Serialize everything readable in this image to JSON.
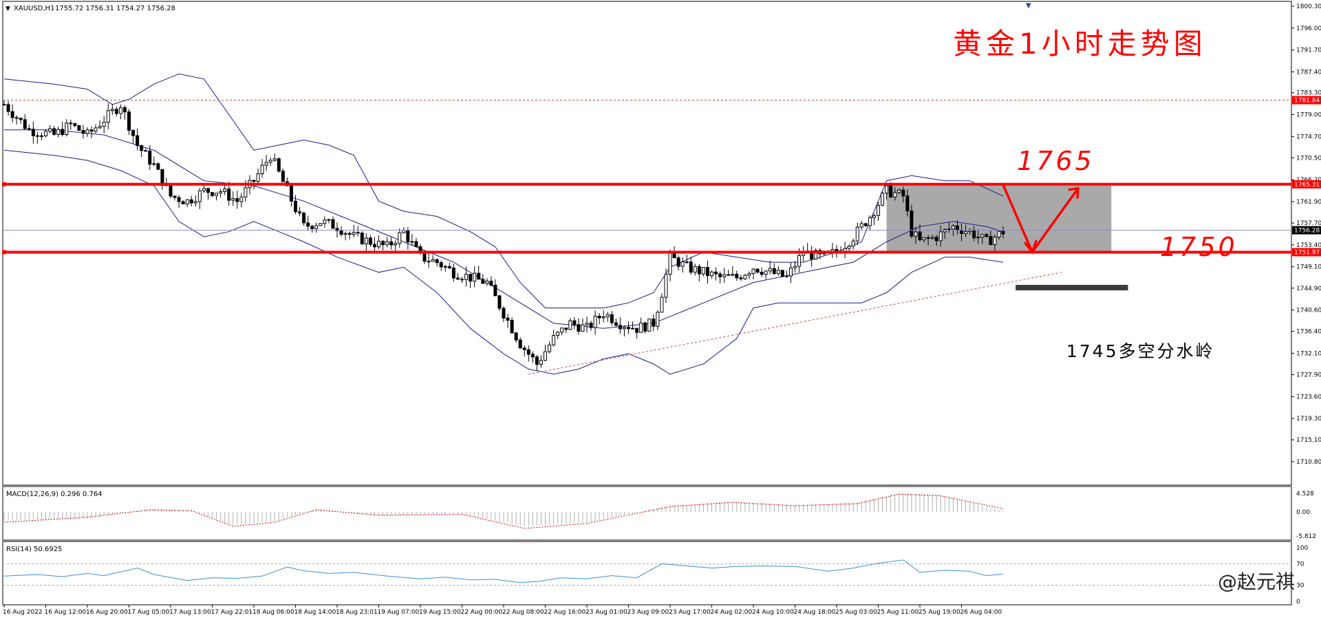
{
  "header": {
    "symbol": "XAUUSD,H1",
    "ohlc": "1755.72 1756.31 1754.27 1756.28"
  },
  "annotations": {
    "title": "黄金1小时走势图",
    "level_high": "1765",
    "level_low": "1750",
    "pivot_note": "1745多空分水岭",
    "watermark": "@赵元祺"
  },
  "colors": {
    "candle": "#000000",
    "bollinger": "#1a1a8c",
    "level_line": "#ff0000",
    "zone_fill": "#a9a9a9",
    "macd_signal": "#cc0000",
    "rsi": "#3b8ed6",
    "annotation": "#ff0000"
  },
  "chart_data": [
    {
      "type": "candlestick",
      "title": "XAUUSD,H1",
      "ylim": [
        1710.0,
        1800.5
      ],
      "y_ticks": [
        "1800.30",
        "1796.00",
        "1791.70",
        "1787.40",
        "1783.30",
        "1779.00",
        "1774.70",
        "1770.50",
        "1766.20",
        "1761.90",
        "1757.70",
        "1753.40",
        "1749.10",
        "1744.90",
        "1740.60",
        "1736.40",
        "1732.10",
        "1727.90",
        "1723.60",
        "1719.30",
        "1715.10",
        "1710.80"
      ],
      "x_ticks": [
        "16 Aug 2022",
        "16 Aug 12:00",
        "16 Aug 20:00",
        "17 Aug 05:00",
        "17 Aug 13:00",
        "17 Aug 22:01",
        "18 Aug 06:00",
        "18 Aug 14:00",
        "18 Aug 23:01",
        "19 Aug 07:00",
        "19 Aug 15:00",
        "22 Aug 00:00",
        "22 Aug 08:00",
        "22 Aug 16:00",
        "23 Aug 01:00",
        "23 Aug 09:00",
        "23 Aug 17:00",
        "24 Aug 02:00",
        "24 Aug 10:00",
        "24 Aug 18:00",
        "25 Aug 03:00",
        "25 Aug 11:00",
        "25 Aug 19:00",
        "26 Aug 04:00"
      ],
      "price_labels": {
        "high_line": "1781.84",
        "resistance": "1765.31",
        "current": "1756.28",
        "support": "1751.97"
      },
      "levels": {
        "high_line": 1781.84,
        "resistance": 1765.31,
        "current": 1756.28,
        "support": 1751.97,
        "pivot": 1745.0
      },
      "close_path": [
        [
          0,
          1781
        ],
        [
          6,
          1776
        ],
        [
          12,
          1775
        ],
        [
          16,
          1777
        ],
        [
          20,
          1775
        ],
        [
          24,
          1778
        ],
        [
          28,
          1781
        ],
        [
          32,
          1773
        ],
        [
          36,
          1769
        ],
        [
          40,
          1763
        ],
        [
          44,
          1762
        ],
        [
          48,
          1764
        ],
        [
          52,
          1764
        ],
        [
          56,
          1762
        ],
        [
          60,
          1766
        ],
        [
          64,
          1771
        ],
        [
          68,
          1764
        ],
        [
          72,
          1757
        ],
        [
          76,
          1758
        ],
        [
          80,
          1757
        ],
        [
          84,
          1755
        ],
        [
          88,
          1754
        ],
        [
          92,
          1753
        ],
        [
          96,
          1756
        ],
        [
          100,
          1751
        ],
        [
          104,
          1750
        ],
        [
          108,
          1748
        ],
        [
          112,
          1747
        ],
        [
          116,
          1746
        ],
        [
          120,
          1740
        ],
        [
          124,
          1734
        ],
        [
          128,
          1730
        ],
        [
          132,
          1735
        ],
        [
          136,
          1738
        ],
        [
          140,
          1737
        ],
        [
          144,
          1740
        ],
        [
          148,
          1738
        ],
        [
          152,
          1737
        ],
        [
          156,
          1738
        ],
        [
          158,
          1744
        ],
        [
          160,
          1751
        ],
        [
          164,
          1749
        ],
        [
          168,
          1748
        ],
        [
          172,
          1747
        ],
        [
          176,
          1747
        ],
        [
          180,
          1749
        ],
        [
          184,
          1748
        ],
        [
          188,
          1747
        ],
        [
          192,
          1752
        ],
        [
          196,
          1751
        ],
        [
          200,
          1752
        ],
        [
          204,
          1755
        ],
        [
          208,
          1759
        ],
        [
          212,
          1764
        ],
        [
          216,
          1763
        ],
        [
          218,
          1756
        ],
        [
          220,
          1754
        ],
        [
          224,
          1755
        ],
        [
          228,
          1757
        ],
        [
          232,
          1756
        ],
        [
          236,
          1754
        ],
        [
          240,
          1756
        ]
      ],
      "bollinger": {
        "upper": [
          [
            0,
            1786
          ],
          [
            12,
            1785
          ],
          [
            20,
            1784
          ],
          [
            26,
            1781
          ],
          [
            30,
            1782
          ],
          [
            36,
            1785
          ],
          [
            42,
            1787
          ],
          [
            48,
            1786
          ],
          [
            54,
            1779
          ],
          [
            60,
            1772
          ],
          [
            66,
            1773
          ],
          [
            72,
            1774
          ],
          [
            78,
            1773
          ],
          [
            84,
            1771
          ],
          [
            90,
            1762
          ],
          [
            96,
            1760
          ],
          [
            104,
            1759
          ],
          [
            112,
            1756
          ],
          [
            118,
            1753
          ],
          [
            124,
            1746
          ],
          [
            130,
            1741
          ],
          [
            136,
            1741
          ],
          [
            144,
            1741
          ],
          [
            150,
            1742
          ],
          [
            156,
            1744
          ],
          [
            160,
            1749
          ],
          [
            168,
            1752
          ],
          [
            176,
            1751
          ],
          [
            184,
            1750
          ],
          [
            192,
            1750
          ],
          [
            200,
            1752
          ],
          [
            206,
            1754
          ],
          [
            212,
            1766
          ],
          [
            218,
            1767
          ],
          [
            226,
            1766
          ],
          [
            232,
            1766
          ],
          [
            240,
            1763
          ]
        ],
        "middle": [
          [
            0,
            1776
          ],
          [
            12,
            1776
          ],
          [
            24,
            1775
          ],
          [
            36,
            1772
          ],
          [
            48,
            1766
          ],
          [
            60,
            1765
          ],
          [
            72,
            1762
          ],
          [
            84,
            1758
          ],
          [
            96,
            1754
          ],
          [
            108,
            1750
          ],
          [
            120,
            1744
          ],
          [
            132,
            1738
          ],
          [
            144,
            1737
          ],
          [
            156,
            1738
          ],
          [
            168,
            1742
          ],
          [
            180,
            1746
          ],
          [
            192,
            1748
          ],
          [
            204,
            1750
          ],
          [
            212,
            1754
          ],
          [
            220,
            1757
          ],
          [
            228,
            1758
          ],
          [
            236,
            1757
          ],
          [
            240,
            1756
          ]
        ],
        "lower": [
          [
            0,
            1772
          ],
          [
            12,
            1771
          ],
          [
            20,
            1770
          ],
          [
            28,
            1768
          ],
          [
            36,
            1765
          ],
          [
            42,
            1758
          ],
          [
            48,
            1755
          ],
          [
            54,
            1756
          ],
          [
            60,
            1758
          ],
          [
            66,
            1756
          ],
          [
            72,
            1754
          ],
          [
            80,
            1751
          ],
          [
            90,
            1748
          ],
          [
            96,
            1749
          ],
          [
            104,
            1744
          ],
          [
            112,
            1737
          ],
          [
            120,
            1732
          ],
          [
            126,
            1729
          ],
          [
            132,
            1728
          ],
          [
            138,
            1729
          ],
          [
            144,
            1731
          ],
          [
            150,
            1732
          ],
          [
            156,
            1730
          ],
          [
            160,
            1728
          ],
          [
            168,
            1730
          ],
          [
            176,
            1735
          ],
          [
            180,
            1741
          ],
          [
            186,
            1742
          ],
          [
            192,
            1742
          ],
          [
            200,
            1742
          ],
          [
            206,
            1742
          ],
          [
            212,
            1744
          ],
          [
            218,
            1748
          ],
          [
            226,
            1751
          ],
          [
            232,
            1751
          ],
          [
            240,
            1750
          ]
        ]
      },
      "trendline": {
        "from": [
          126,
          1728.0
        ],
        "to": [
          254,
          1748.0
        ]
      },
      "zone": {
        "x_from": 212,
        "x_to": 266,
        "y_from": 1751.97,
        "y_to": 1765.31
      },
      "projection": [
        [
          240,
          1765.2
        ],
        [
          247,
          1752.0
        ],
        [
          258,
          1764.5
        ]
      ],
      "pivot_bar": {
        "x_from": 243,
        "x_to": 270,
        "y": 1745.0
      }
    },
    {
      "type": "histogram",
      "title": "MACD(12,26,9) 0.296 0.764",
      "y_ticks": [
        "4.528",
        "0.00",
        "-5.812"
      ],
      "ylim": [
        -6.0,
        5.0
      ],
      "histogram": [
        [
          0,
          -2.0
        ],
        [
          20,
          -1.5
        ],
        [
          35,
          0.7
        ],
        [
          45,
          0.4
        ],
        [
          55,
          -3.2
        ],
        [
          65,
          -2.2
        ],
        [
          75,
          0.7
        ],
        [
          90,
          -1.0
        ],
        [
          110,
          -0.5
        ],
        [
          125,
          -3.5
        ],
        [
          140,
          -2.5
        ],
        [
          160,
          1.5
        ],
        [
          175,
          2.5
        ],
        [
          190,
          1.6
        ],
        [
          205,
          2.3
        ],
        [
          215,
          4.6
        ],
        [
          225,
          4.1
        ],
        [
          240,
          0.3
        ]
      ],
      "signal": [
        [
          0,
          -2.5
        ],
        [
          20,
          -1.3
        ],
        [
          35,
          0.5
        ],
        [
          45,
          0.3
        ],
        [
          55,
          -3.5
        ],
        [
          65,
          -2.5
        ],
        [
          75,
          0.5
        ],
        [
          90,
          -0.8
        ],
        [
          110,
          -0.6
        ],
        [
          125,
          -4.0
        ],
        [
          140,
          -2.8
        ],
        [
          160,
          1.3
        ],
        [
          175,
          2.3
        ],
        [
          190,
          1.5
        ],
        [
          205,
          2.0
        ],
        [
          215,
          4.3
        ],
        [
          225,
          3.9
        ],
        [
          240,
          0.8
        ]
      ]
    },
    {
      "type": "line",
      "title": "RSI(14) 50.6925",
      "y_ticks": [
        "100",
        "70",
        "30",
        "0"
      ],
      "ylim": [
        0,
        100
      ],
      "series": [
        {
          "values": [
            [
              0,
              47
            ],
            [
              8,
              50
            ],
            [
              14,
              46
            ],
            [
              20,
              52
            ],
            [
              24,
              48
            ],
            [
              32,
              62
            ],
            [
              36,
              50
            ],
            [
              44,
              39
            ],
            [
              50,
              44
            ],
            [
              56,
              43
            ],
            [
              62,
              47
            ],
            [
              68,
              64
            ],
            [
              72,
              57
            ],
            [
              78,
              52
            ],
            [
              84,
              54
            ],
            [
              92,
              47
            ],
            [
              100,
              42
            ],
            [
              106,
              45
            ],
            [
              112,
              40
            ],
            [
              118,
              41
            ],
            [
              124,
              35
            ],
            [
              128,
              37
            ],
            [
              134,
              44
            ],
            [
              140,
              42
            ],
            [
              146,
              48
            ],
            [
              152,
              44
            ],
            [
              158,
              70
            ],
            [
              164,
              66
            ],
            [
              170,
              62
            ],
            [
              176,
              65
            ],
            [
              182,
              66
            ],
            [
              190,
              65
            ],
            [
              198,
              56
            ],
            [
              204,
              62
            ],
            [
              210,
              71
            ],
            [
              216,
              77
            ],
            [
              220,
              54
            ],
            [
              226,
              58
            ],
            [
              232,
              56
            ],
            [
              236,
              48
            ],
            [
              240,
              51
            ]
          ]
        }
      ]
    }
  ]
}
